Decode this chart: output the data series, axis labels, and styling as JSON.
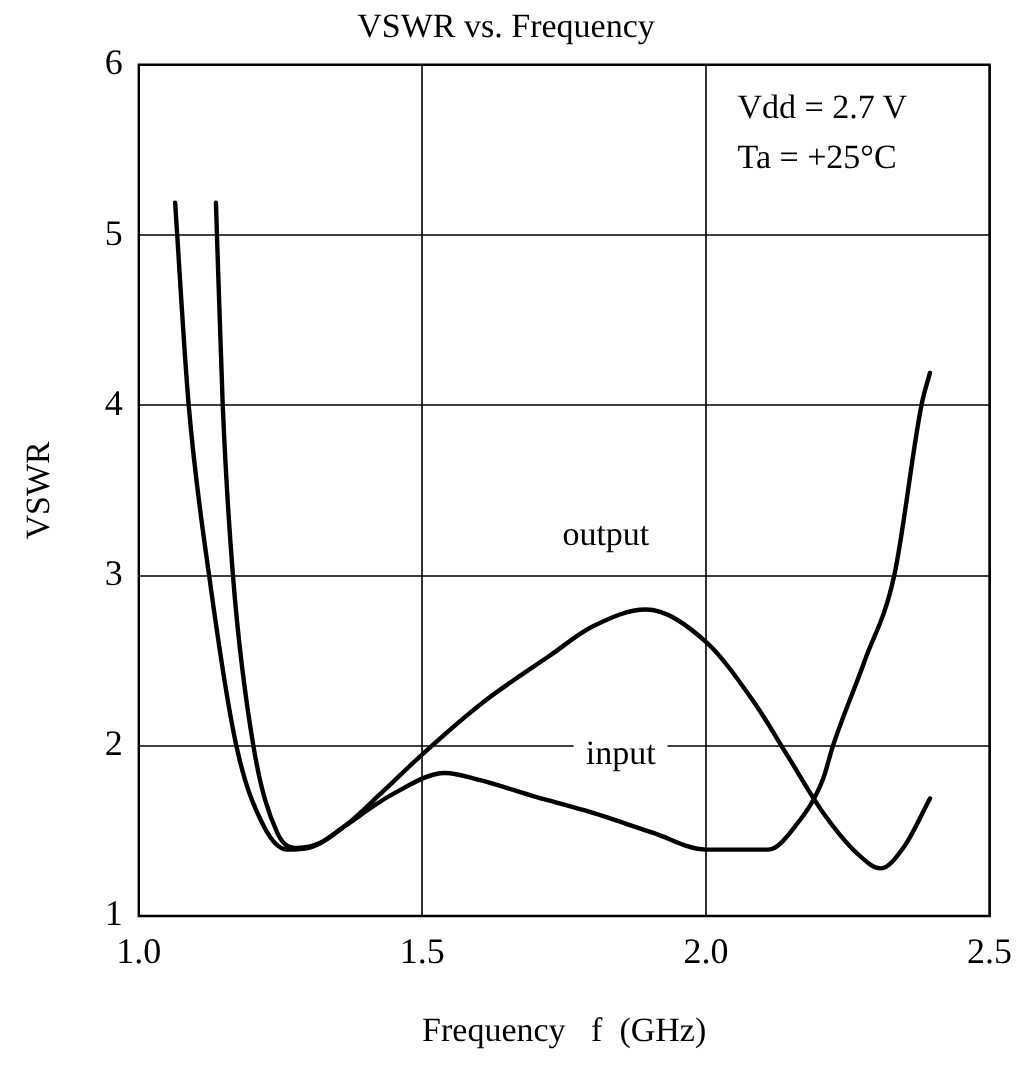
{
  "chart_data": {
    "type": "line",
    "title": "VSWR vs. Frequency",
    "xlabel": "Frequency   f  (GHz)",
    "ylabel": "VSWR",
    "xlim": [
      1.0,
      2.5
    ],
    "xticks": [
      {
        "value": 1.0,
        "label": "1.0"
      },
      {
        "value": 1.5,
        "label": "1.5"
      },
      {
        "value": 2.0,
        "label": "2.0"
      },
      {
        "value": 2.5,
        "label": "2.5"
      }
    ],
    "ylim": [
      1,
      6
    ],
    "yticks": [
      1,
      2,
      3,
      4,
      5,
      6
    ],
    "grid": true,
    "legend": false,
    "marker": "none",
    "line_style": "solid",
    "series": [
      {
        "name": "output",
        "color": "#000000",
        "x": [
          1.064,
          1.088,
          1.124,
          1.172,
          1.22,
          1.262,
          1.3,
          1.364,
          1.43,
          1.5,
          1.605,
          1.725,
          1.8,
          1.894,
          2.0,
          2.086,
          2.146,
          2.206,
          2.266,
          2.308,
          2.35,
          2.395
        ],
        "values": [
          5.19,
          4.0,
          3.0,
          2.0,
          1.53,
          1.39,
          1.4,
          1.53,
          1.73,
          1.95,
          2.25,
          2.53,
          2.7,
          2.8,
          2.61,
          2.25,
          1.93,
          1.61,
          1.37,
          1.28,
          1.41,
          1.69
        ]
      },
      {
        "name": "input",
        "color": "#000000",
        "x": [
          1.136,
          1.148,
          1.166,
          1.202,
          1.244,
          1.28,
          1.32,
          1.364,
          1.45,
          1.54,
          1.6,
          1.7,
          1.787,
          1.906,
          2.0,
          2.11,
          2.158,
          2.206,
          2.224,
          2.28,
          2.332,
          2.38,
          2.395
        ],
        "values": [
          5.19,
          4.0,
          3.0,
          2.0,
          1.49,
          1.4,
          1.43,
          1.53,
          1.72,
          1.84,
          1.8,
          1.7,
          1.62,
          1.49,
          1.39,
          1.39,
          1.53,
          1.8,
          2.0,
          2.5,
          3.0,
          4.0,
          4.19
        ]
      }
    ],
    "annotations": [
      "Vdd = 2.7 V",
      "Ta = +25°C"
    ]
  }
}
